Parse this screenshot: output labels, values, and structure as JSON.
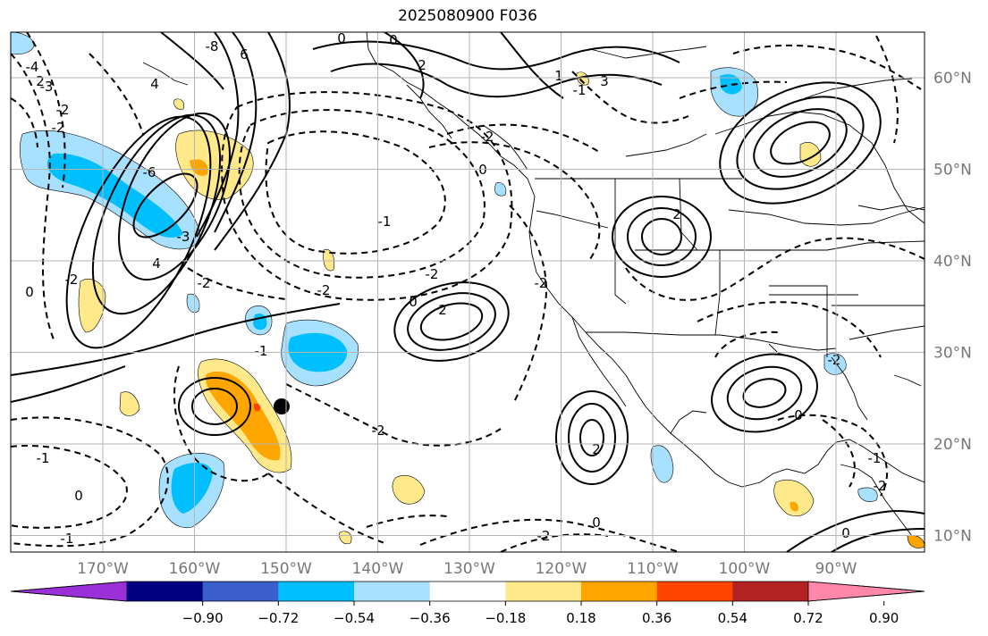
{
  "title": "2025080900 F036",
  "map": {
    "lon_labels": [
      "170°W",
      "160°W",
      "150°W",
      "140°W",
      "130°W",
      "120°W",
      "110°W",
      "100°W",
      "90°W"
    ],
    "lat_labels": [
      "60°N",
      "50°N",
      "40°N",
      "30°N",
      "20°N",
      "10°N"
    ],
    "marker": {
      "lon": -150.0,
      "lat": 24.0
    },
    "contour_labels": [
      "0",
      "0",
      "-2",
      "2",
      "-8",
      "6",
      "4",
      "-4",
      "-3",
      "-2",
      "3",
      "2",
      "-1",
      "1",
      "-6",
      "-3",
      "4",
      "-2",
      "-2",
      "0",
      "-2",
      "0",
      "-2",
      "-2",
      "-2",
      "-1",
      "0",
      "-1",
      "-2",
      "-1",
      "0",
      "-1",
      "-2",
      "2",
      "2",
      "0",
      "2",
      "-2",
      "0",
      "-1",
      "0",
      "-2"
    ]
  },
  "colorbar": {
    "tick_labels": [
      "−0.90",
      "−0.72",
      "−0.54",
      "−0.36",
      "−0.18",
      "0.18",
      "0.36",
      "0.54",
      "0.72",
      "0.90"
    ],
    "colors": [
      "#9b30d9",
      "#000080",
      "#3a5fcd",
      "#00bfff",
      "#a8e0ff",
      "#ffffff",
      "#ffe98a",
      "#ffa500",
      "#ff4500",
      "#b22222",
      "#ff88aa"
    ]
  },
  "colors": {
    "grid": "#b5b5b5",
    "axis_label": "#777777"
  }
}
